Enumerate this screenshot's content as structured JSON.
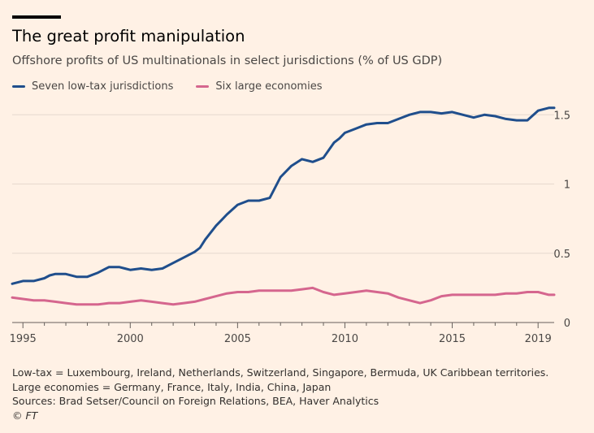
{
  "chart_data": {
    "type": "line",
    "title": "The great profit manipulation",
    "subtitle": "Offshore profits of US multinationals in select jurisdictions (% of US GDP)",
    "xlabel": "",
    "ylabel": "",
    "xlim": [
      1994.5,
      2019.75
    ],
    "ylim": [
      0,
      1.6
    ],
    "x_ticks": [
      {
        "value": 1995,
        "label": "1995"
      },
      {
        "value": 2000,
        "label": "2000"
      },
      {
        "value": 2005,
        "label": "2005"
      },
      {
        "value": 2010,
        "label": "2010"
      },
      {
        "value": 2015,
        "label": "2015"
      },
      {
        "value": 2019,
        "label": "2019"
      }
    ],
    "y_ticks": [
      {
        "value": 0,
        "label": "0"
      },
      {
        "value": 0.5,
        "label": "0.5"
      },
      {
        "value": 1,
        "label": "1"
      },
      {
        "value": 1.5,
        "label": "1.5"
      }
    ],
    "grid": "horizontal",
    "legend_position": "top-left",
    "series": [
      {
        "name": "Seven low-tax jurisdictions",
        "color": "#1f4e8c",
        "x": [
          1994.5,
          1995,
          1995.5,
          1996,
          1996.25,
          1996.5,
          1997,
          1997.5,
          1998,
          1998.5,
          1999,
          1999.5,
          1999.75,
          2000,
          2000.5,
          2001,
          2001.5,
          2002,
          2002.25,
          2002.5,
          2003,
          2003.25,
          2003.5,
          2004,
          2004.25,
          2004.5,
          2005,
          2005.5,
          2006,
          2006.5,
          2007,
          2007.5,
          2008,
          2008.5,
          2009,
          2009.5,
          2009.75,
          2010,
          2010.5,
          2011,
          2011.5,
          2012,
          2012.5,
          2013,
          2013.5,
          2014,
          2014.5,
          2015,
          2015.5,
          2016,
          2016.5,
          2017,
          2017.5,
          2018,
          2018.5,
          2019,
          2019.5,
          2019.75
        ],
        "values": [
          0.28,
          0.3,
          0.3,
          0.32,
          0.34,
          0.35,
          0.35,
          0.33,
          0.33,
          0.36,
          0.4,
          0.4,
          0.39,
          0.38,
          0.39,
          0.38,
          0.39,
          0.43,
          0.45,
          0.47,
          0.51,
          0.54,
          0.6,
          0.7,
          0.74,
          0.78,
          0.85,
          0.88,
          0.88,
          0.9,
          1.05,
          1.13,
          1.18,
          1.16,
          1.19,
          1.3,
          1.33,
          1.37,
          1.4,
          1.43,
          1.44,
          1.44,
          1.47,
          1.5,
          1.52,
          1.52,
          1.51,
          1.52,
          1.5,
          1.48,
          1.5,
          1.49,
          1.47,
          1.46,
          1.46,
          1.53,
          1.55,
          1.55
        ]
      },
      {
        "name": "Six large economies",
        "color": "#d5668e",
        "x": [
          1994.5,
          1995,
          1995.5,
          1996,
          1996.5,
          1997,
          1997.5,
          1998,
          1998.5,
          1999,
          1999.5,
          2000,
          2000.5,
          2001,
          2001.5,
          2002,
          2002.5,
          2003,
          2003.5,
          2004,
          2004.5,
          2005,
          2005.5,
          2006,
          2006.5,
          2007,
          2007.5,
          2008,
          2008.5,
          2009,
          2009.5,
          2010,
          2010.5,
          2011,
          2011.5,
          2012,
          2012.5,
          2013,
          2013.5,
          2014,
          2014.5,
          2015,
          2015.5,
          2016,
          2016.5,
          2017,
          2017.5,
          2018,
          2018.5,
          2019,
          2019.5,
          2019.75
        ],
        "values": [
          0.18,
          0.17,
          0.16,
          0.16,
          0.15,
          0.14,
          0.13,
          0.13,
          0.13,
          0.14,
          0.14,
          0.15,
          0.16,
          0.15,
          0.14,
          0.13,
          0.14,
          0.15,
          0.17,
          0.19,
          0.21,
          0.22,
          0.22,
          0.23,
          0.23,
          0.23,
          0.23,
          0.24,
          0.25,
          0.22,
          0.2,
          0.21,
          0.22,
          0.23,
          0.22,
          0.21,
          0.18,
          0.16,
          0.14,
          0.16,
          0.19,
          0.2,
          0.2,
          0.2,
          0.2,
          0.2,
          0.21,
          0.21,
          0.22,
          0.22,
          0.2,
          0.2
        ]
      }
    ]
  },
  "footnote": {
    "definitions": "Low-tax = Luxembourg, Ireland, Netherlands, Switzerland, Singapore, Bermuda, UK Caribbean territories. Large economies = Germany, France, Italy, India, China, Japan",
    "sources": "Sources: Brad Setser/Council on Foreign Relations, BEA, Haver Analytics",
    "credit": "© FT"
  }
}
